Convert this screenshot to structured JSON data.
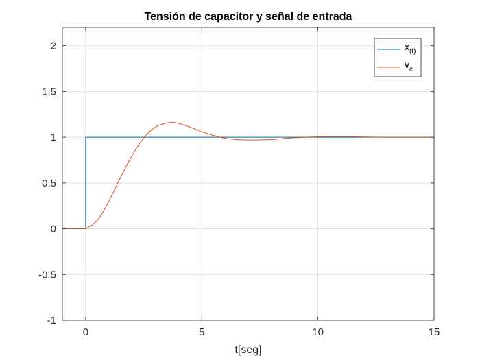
{
  "chart_data": {
    "type": "line",
    "title": "Tensión de capacitor y señal de entrada",
    "xlabel": "t[seg]",
    "ylabel": "",
    "xlim": [
      -1,
      15
    ],
    "ylim": [
      -1,
      2.2
    ],
    "xticks": [
      0,
      5,
      10,
      15
    ],
    "xtick_labels": [
      "0",
      "5",
      "10",
      "15"
    ],
    "yticks": [
      -1,
      -0.5,
      0,
      0.5,
      1,
      1.5,
      2
    ],
    "ytick_labels": [
      "-1",
      "-0.5",
      "0",
      "0.5",
      "1",
      "1.5",
      "2"
    ],
    "grid": true,
    "legend_position": "top-right",
    "series": [
      {
        "name": "x(t)",
        "legend_main": "x",
        "legend_sub": "(t)",
        "color": "#0072BD",
        "x": [
          -1,
          0,
          0,
          15
        ],
        "y": [
          0,
          0,
          1,
          1
        ]
      },
      {
        "name": "vc",
        "legend_main": "v",
        "legend_sub": "c",
        "color": "#D95319",
        "x": [
          -1,
          0,
          0.5,
          1,
          1.5,
          2,
          2.5,
          3,
          3.6,
          4,
          4.5,
          5,
          5.5,
          6,
          6.5,
          7,
          7.3,
          8,
          8.5,
          9,
          9.5,
          10,
          11,
          12,
          13,
          14,
          15
        ],
        "y": [
          0,
          0,
          0.09,
          0.3,
          0.56,
          0.8,
          0.99,
          1.11,
          1.16,
          1.15,
          1.11,
          1.06,
          1.02,
          0.99,
          0.975,
          0.97,
          0.97,
          0.975,
          0.985,
          0.995,
          1.0,
          1.005,
          1.008,
          1.003,
          1.0,
          1.0,
          1.0
        ]
      }
    ]
  }
}
